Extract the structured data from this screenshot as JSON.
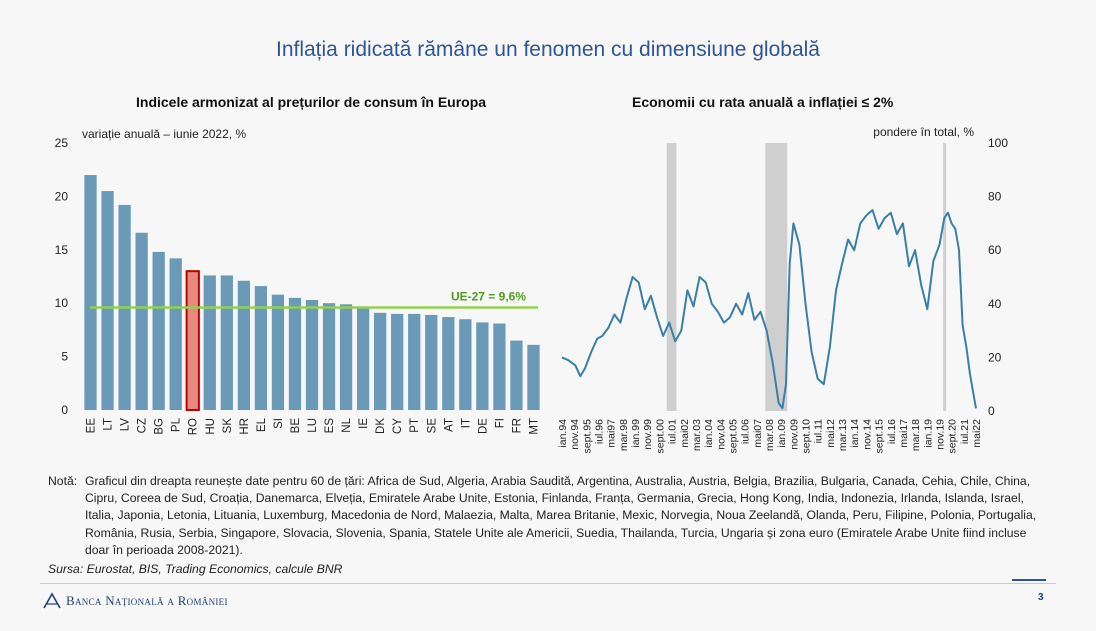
{
  "slide_title": "Inflația ridicată rămâne un fenomen cu dimensiune globală",
  "note_label": "Notă:",
  "note_text": "Graficul din dreapta reunește date pentru 60 de țări: Africa de Sud, Algeria, Arabia Saudită, Argentina, Australia, Austria, Belgia, Brazilia, Bulgaria, Canada, Cehia, Chile, China, Cipru, Coreea de Sud, Croația, Danemarca, Elveția, Emiratele Arabe Unite, Estonia, Finlanda, Franța, Germania, Grecia, Hong Kong, India, Indonezia, Irlanda, Islanda, Israel, Italia, Japonia, Letonia, Lituania, Luxemburg, Macedonia de Nord, Malaezia, Malta, Marea Britanie, Mexic, Norvegia, Noua Zeelandă, Olanda, Peru, Filipine, Polonia, Portugalia, România, Rusia, Serbia, Singapore, Slovacia, Slovenia, Spania, Statele Unite ale Americii, Suedia, Thailanda, Turcia, Ungaria și zona euro (Emiratele Arabe Unite fiind incluse doar în perioada 2008-2021).",
  "source": "Sursa: Eurostat, BIS, Trading Economics, calcule BNR",
  "bank_name": "Banca Națională a României",
  "bank_logo_icon": "bnr-logo-icon",
  "page_number": "3",
  "colors": {
    "bar": "#6a9ab8",
    "highlight_fill": "#e58a80",
    "highlight_border": "#c00000",
    "ue_line": "#92d050",
    "ue_label": "#4f9e1a",
    "line": "#3a7fa8",
    "shade": "#cfcfcf",
    "title": "#2f5597"
  },
  "chart_data": [
    {
      "type": "bar",
      "title": "Indicele armonizat al prețurilor de consum în Europa",
      "ylabel": "variație anuală – iunie 2022, %",
      "categories": [
        "EE",
        "LT",
        "LV",
        "CZ",
        "BG",
        "PL",
        "RO",
        "HU",
        "SK",
        "HR",
        "EL",
        "SI",
        "BE",
        "LU",
        "ES",
        "NL",
        "IE",
        "DK",
        "CY",
        "PT",
        "SE",
        "AT",
        "IT",
        "DE",
        "FI",
        "FR",
        "MT"
      ],
      "values": [
        22.0,
        20.5,
        19.2,
        16.6,
        14.8,
        14.2,
        13.0,
        12.6,
        12.6,
        12.1,
        11.6,
        10.8,
        10.5,
        10.3,
        10.0,
        9.9,
        9.6,
        9.1,
        9.0,
        9.0,
        8.9,
        8.7,
        8.5,
        8.2,
        8.1,
        6.5,
        6.1
      ],
      "highlight": "RO",
      "reference_line": {
        "value": 9.6,
        "label": "UE-27 = 9,6%"
      },
      "ylim": [
        0,
        25
      ],
      "yticks": [
        0,
        5,
        10,
        15,
        20,
        25
      ],
      "grid": false
    },
    {
      "type": "line",
      "title": "Economii cu rata anuală a inflației ≤ 2%",
      "ylabel": "pondere în total, %",
      "ylim": [
        0,
        100
      ],
      "yticks": [
        0,
        20,
        40,
        60,
        80,
        100
      ],
      "x_range": [
        "1994-01",
        "2022-05"
      ],
      "x_ticks": [
        "ian.94",
        "nov.94",
        "sept.95",
        "iul.96",
        "mai97",
        "mar.98",
        "ian.99",
        "nov.99",
        "sept.00",
        "iul.01",
        "mai02",
        "mar.03",
        "ian.04",
        "nov.04",
        "sept.05",
        "iul.06",
        "mai07",
        "mar.08",
        "ian.09",
        "nov.09",
        "sept.10",
        "iul.11",
        "mai12",
        "mar.13",
        "ian.14",
        "nov.14",
        "sept.15",
        "iul.16",
        "mai17",
        "mar.18",
        "ian.19",
        "nov.19",
        "sept.20",
        "iul.21",
        "mai22"
      ],
      "shaded_periods": [
        [
          "2001-03",
          "2001-11"
        ],
        [
          "2007-12",
          "2009-06"
        ],
        [
          "2020-02",
          "2020-04"
        ]
      ],
      "series": [
        {
          "x": [
            "1994-01",
            "1994-06",
            "1994-12",
            "1995-04",
            "1995-08",
            "1996-01",
            "1996-06",
            "1996-10",
            "1997-03",
            "1997-08",
            "1998-01",
            "1998-06",
            "1998-11",
            "1999-04",
            "1999-09",
            "2000-02",
            "2000-07",
            "2000-12",
            "2001-05",
            "2001-10",
            "2002-03",
            "2002-08",
            "2003-01",
            "2003-06",
            "2003-11",
            "2004-04",
            "2004-09",
            "2005-02",
            "2005-07",
            "2005-12",
            "2006-05",
            "2006-10",
            "2007-03",
            "2007-08",
            "2008-01",
            "2008-06",
            "2008-11",
            "2009-02",
            "2009-05",
            "2009-08",
            "2009-11",
            "2010-04",
            "2010-09",
            "2011-02",
            "2011-07",
            "2011-12",
            "2012-05",
            "2012-10",
            "2013-03",
            "2013-08",
            "2014-01",
            "2014-06",
            "2014-11",
            "2015-04",
            "2015-09",
            "2016-02",
            "2016-07",
            "2016-12",
            "2017-05",
            "2017-10",
            "2018-03",
            "2018-08",
            "2019-01",
            "2019-06",
            "2019-11",
            "2020-03",
            "2020-06",
            "2020-09",
            "2020-12",
            "2021-03",
            "2021-06",
            "2021-09",
            "2021-12",
            "2022-03",
            "2022-05"
          ],
          "y": [
            20,
            19,
            17,
            13,
            16,
            22,
            27,
            28,
            31,
            36,
            33,
            42,
            50,
            48,
            38,
            43,
            35,
            28,
            33,
            26,
            30,
            45,
            39,
            50,
            48,
            40,
            37,
            33,
            35,
            40,
            36,
            44,
            34,
            37,
            30,
            18,
            3,
            1,
            10,
            55,
            70,
            62,
            40,
            22,
            12,
            10,
            24,
            45,
            55,
            64,
            60,
            70,
            73,
            75,
            68,
            72,
            74,
            66,
            70,
            54,
            60,
            47,
            38,
            56,
            62,
            72,
            74,
            70,
            68,
            60,
            32,
            24,
            14,
            6,
            1
          ]
        }
      ]
    }
  ]
}
